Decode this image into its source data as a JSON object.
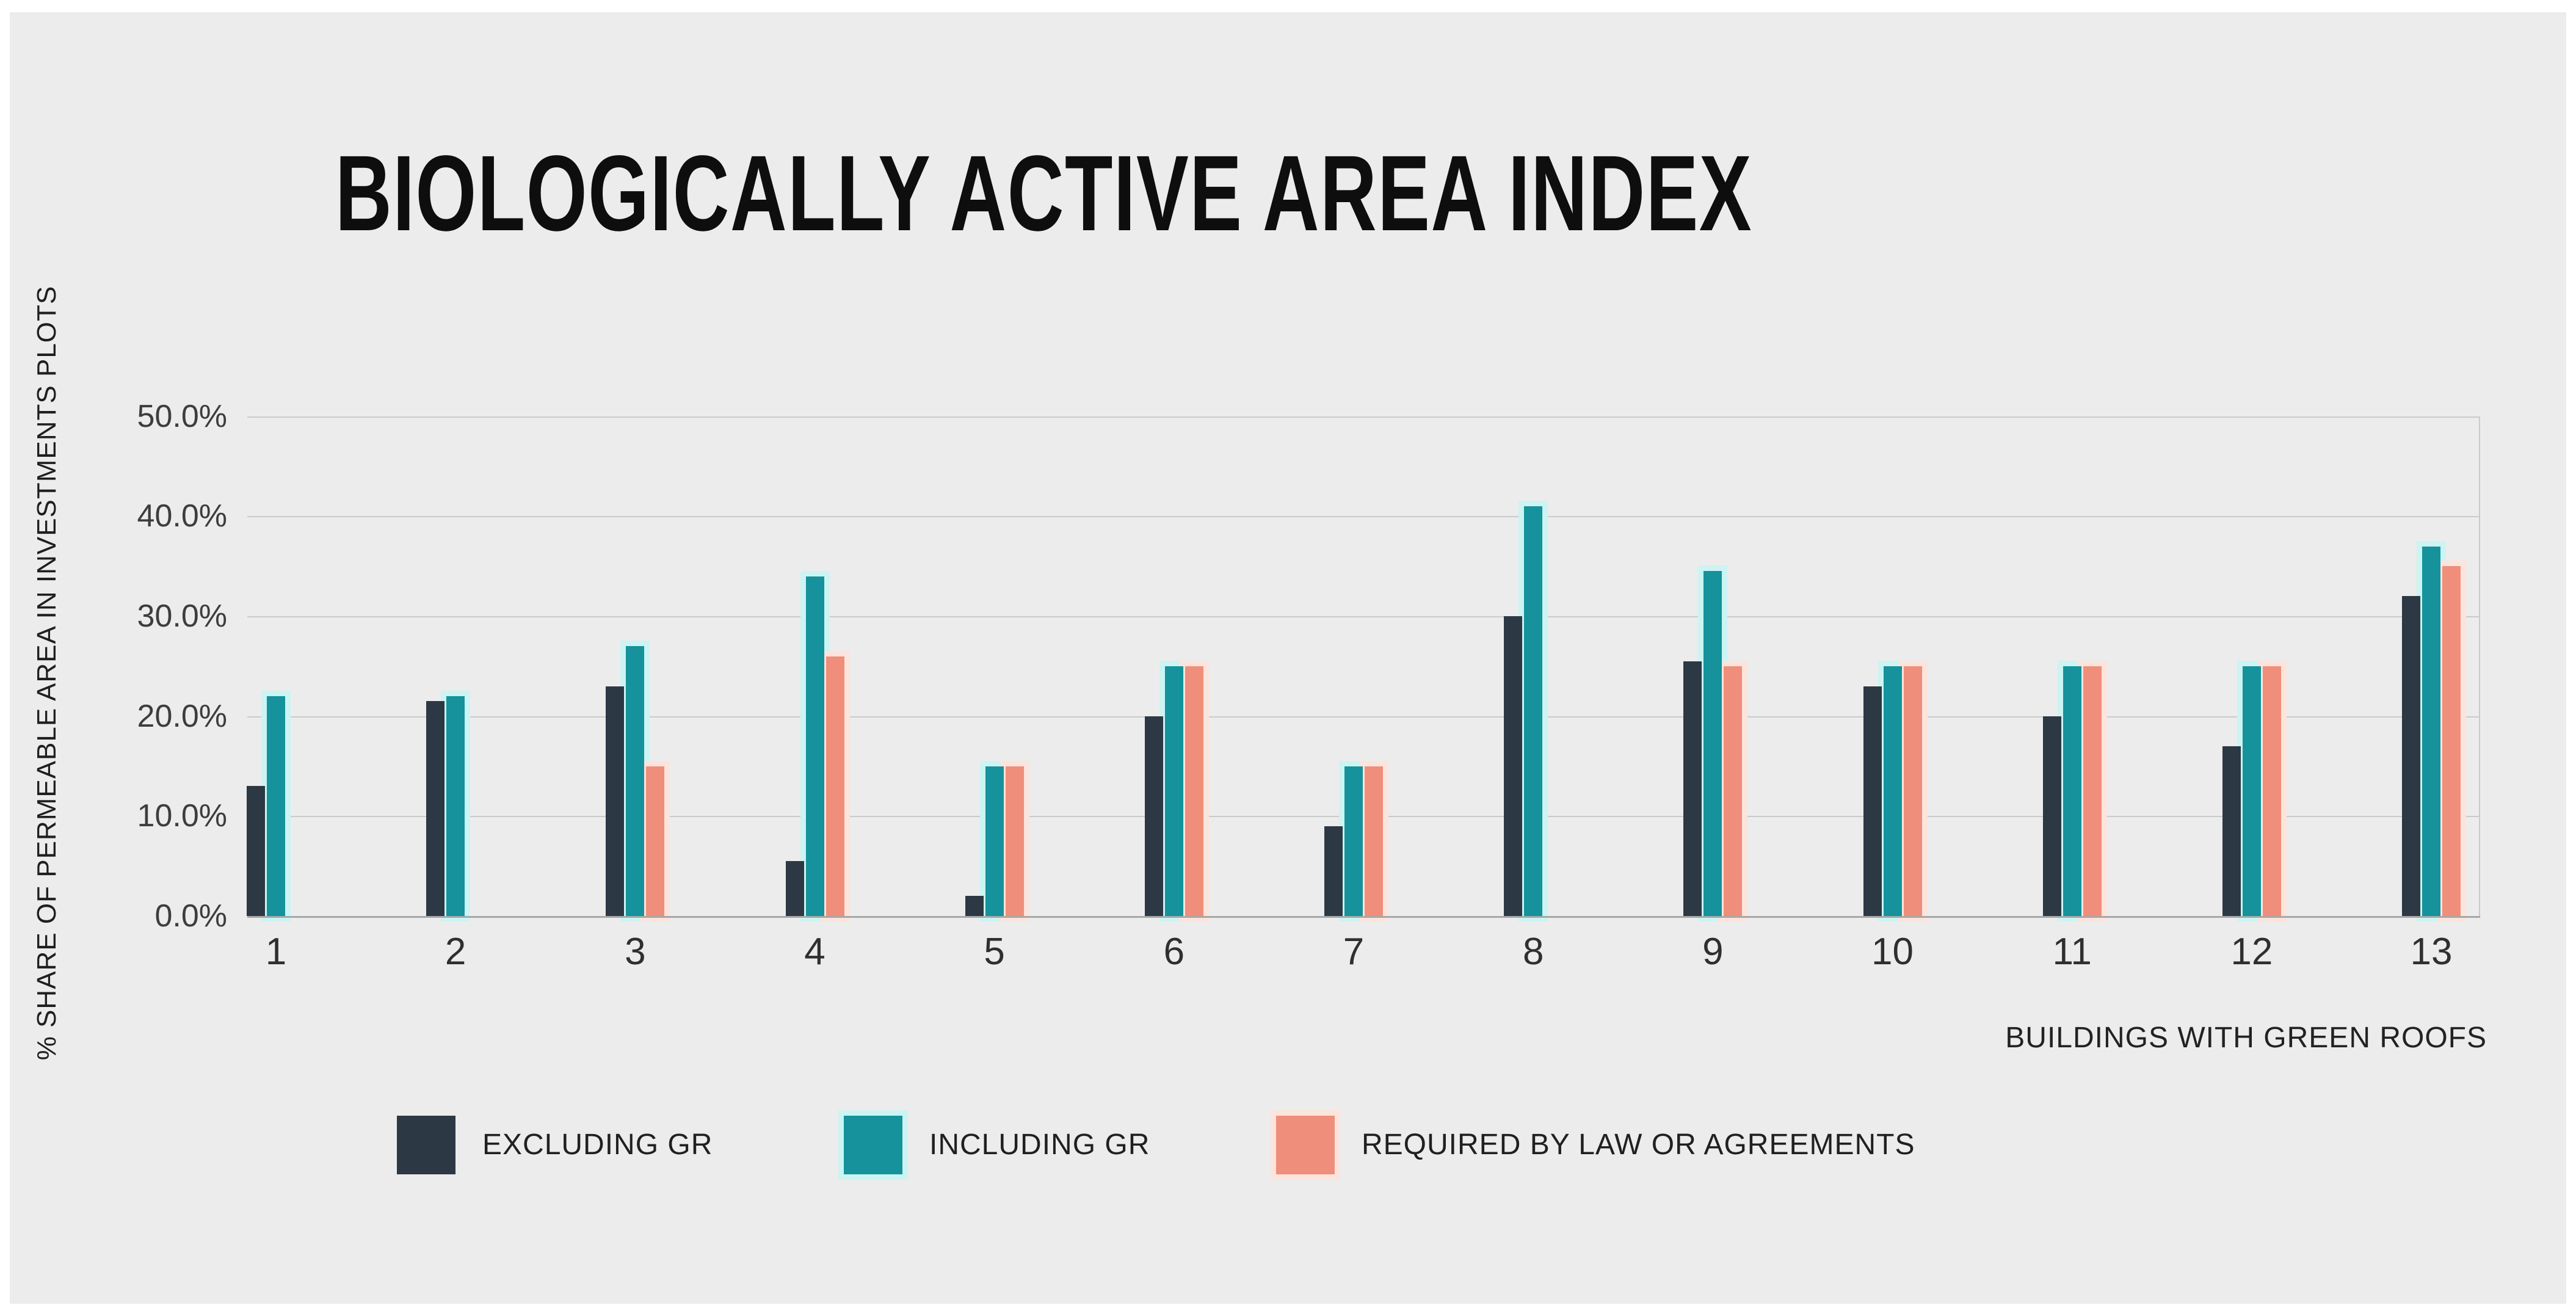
{
  "title": "BIOLOGICALLY ACTIVE AREA INDEX",
  "colors": {
    "page_border": "#ffffff",
    "canvas": "#ececec",
    "gridline": "#c9cbcb",
    "axis_line": "#a6a8a8",
    "title_text": "#0e0e0e",
    "tick_text": "#3d3d3d"
  },
  "chart_data": {
    "type": "bar",
    "variant": "grouped",
    "title": "BIOLOGICALLY ACTIVE AREA INDEX",
    "xlabel": "BUILDINGS WITH GREEN ROOFS",
    "ylabel": "% SHARE  OF PERMEABLE AREA IN INVESTMENTS PLOTS",
    "categories": [
      "1",
      "2",
      "3",
      "4",
      "5",
      "6",
      "7",
      "8",
      "9",
      "10",
      "11",
      "12",
      "13"
    ],
    "ylim": [
      0,
      50
    ],
    "ytick_labels": [
      "0.0%",
      "10.0%",
      "20.0%",
      "30.0%",
      "40.0%",
      "50.0%"
    ],
    "ytick_values": [
      0,
      10,
      20,
      30,
      40,
      50
    ],
    "grid": true,
    "legend_position": "bottom",
    "series": [
      {
        "name": "EXCLUDING GR",
        "color": "#2c3843",
        "glow": null,
        "values": [
          13,
          21.5,
          23,
          5.5,
          2,
          20,
          9,
          30,
          25.5,
          23,
          20,
          17,
          32
        ]
      },
      {
        "name": "INCLUDING GR",
        "color": "#15929b",
        "glow": "#cbf4f3",
        "values": [
          22,
          22,
          27,
          34,
          15,
          25,
          15,
          41,
          34.5,
          25,
          25,
          25,
          37
        ]
      },
      {
        "name": "REQUIRED BY LAW OR AGREEMENTS",
        "color": "#ef8e7b",
        "glow": "#fbe4dc",
        "values": [
          null,
          null,
          15,
          26,
          15,
          25,
          15,
          null,
          25,
          25,
          25,
          25,
          35
        ]
      }
    ]
  }
}
